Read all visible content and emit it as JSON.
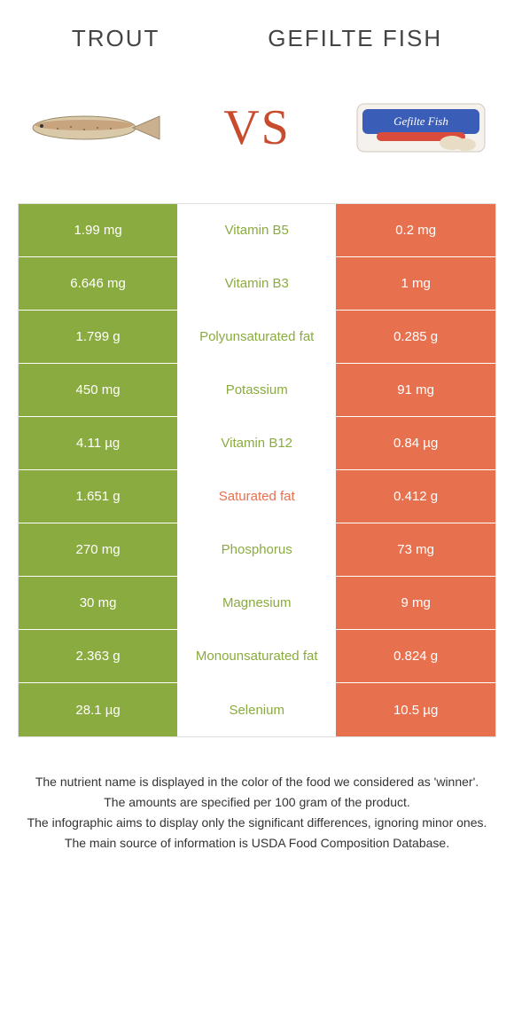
{
  "header": {
    "left_title": "Trout",
    "right_title": "Gefilte Fish",
    "vs_label": "VS",
    "vs_color": "#c94b2e"
  },
  "colors": {
    "left_bg": "#8aab3f",
    "right_bg": "#e7704e",
    "mid_bg": "#ffffff",
    "mid_winner_left": "#8aab3f",
    "mid_winner_right": "#e7704e",
    "row_border": "#ffffff"
  },
  "rows": [
    {
      "nutrient": "Vitamin B5",
      "left": "1.99 mg",
      "right": "0.2 mg",
      "winner": "left"
    },
    {
      "nutrient": "Vitamin B3",
      "left": "6.646 mg",
      "right": "1 mg",
      "winner": "left"
    },
    {
      "nutrient": "Polyunsaturated fat",
      "left": "1.799 g",
      "right": "0.285 g",
      "winner": "left"
    },
    {
      "nutrient": "Potassium",
      "left": "450 mg",
      "right": "91 mg",
      "winner": "left"
    },
    {
      "nutrient": "Vitamin B12",
      "left": "4.11 µg",
      "right": "0.84 µg",
      "winner": "left"
    },
    {
      "nutrient": "Saturated fat",
      "left": "1.651 g",
      "right": "0.412 g",
      "winner": "right"
    },
    {
      "nutrient": "Phosphorus",
      "left": "270 mg",
      "right": "73 mg",
      "winner": "left"
    },
    {
      "nutrient": "Magnesium",
      "left": "30 mg",
      "right": "9 mg",
      "winner": "left"
    },
    {
      "nutrient": "Monounsaturated fat",
      "left": "2.363 g",
      "right": "0.824 g",
      "winner": "left"
    },
    {
      "nutrient": "Selenium",
      "left": "28.1 µg",
      "right": "10.5 µg",
      "winner": "left"
    }
  ],
  "footnotes": [
    "The nutrient name is displayed in the color of the food we considered as 'winner'.",
    "The amounts are specified per 100 gram of the product.",
    "The infographic aims to display only the significant differences, ignoring minor ones.",
    "The main source of information is USDA Food Composition Database."
  ]
}
